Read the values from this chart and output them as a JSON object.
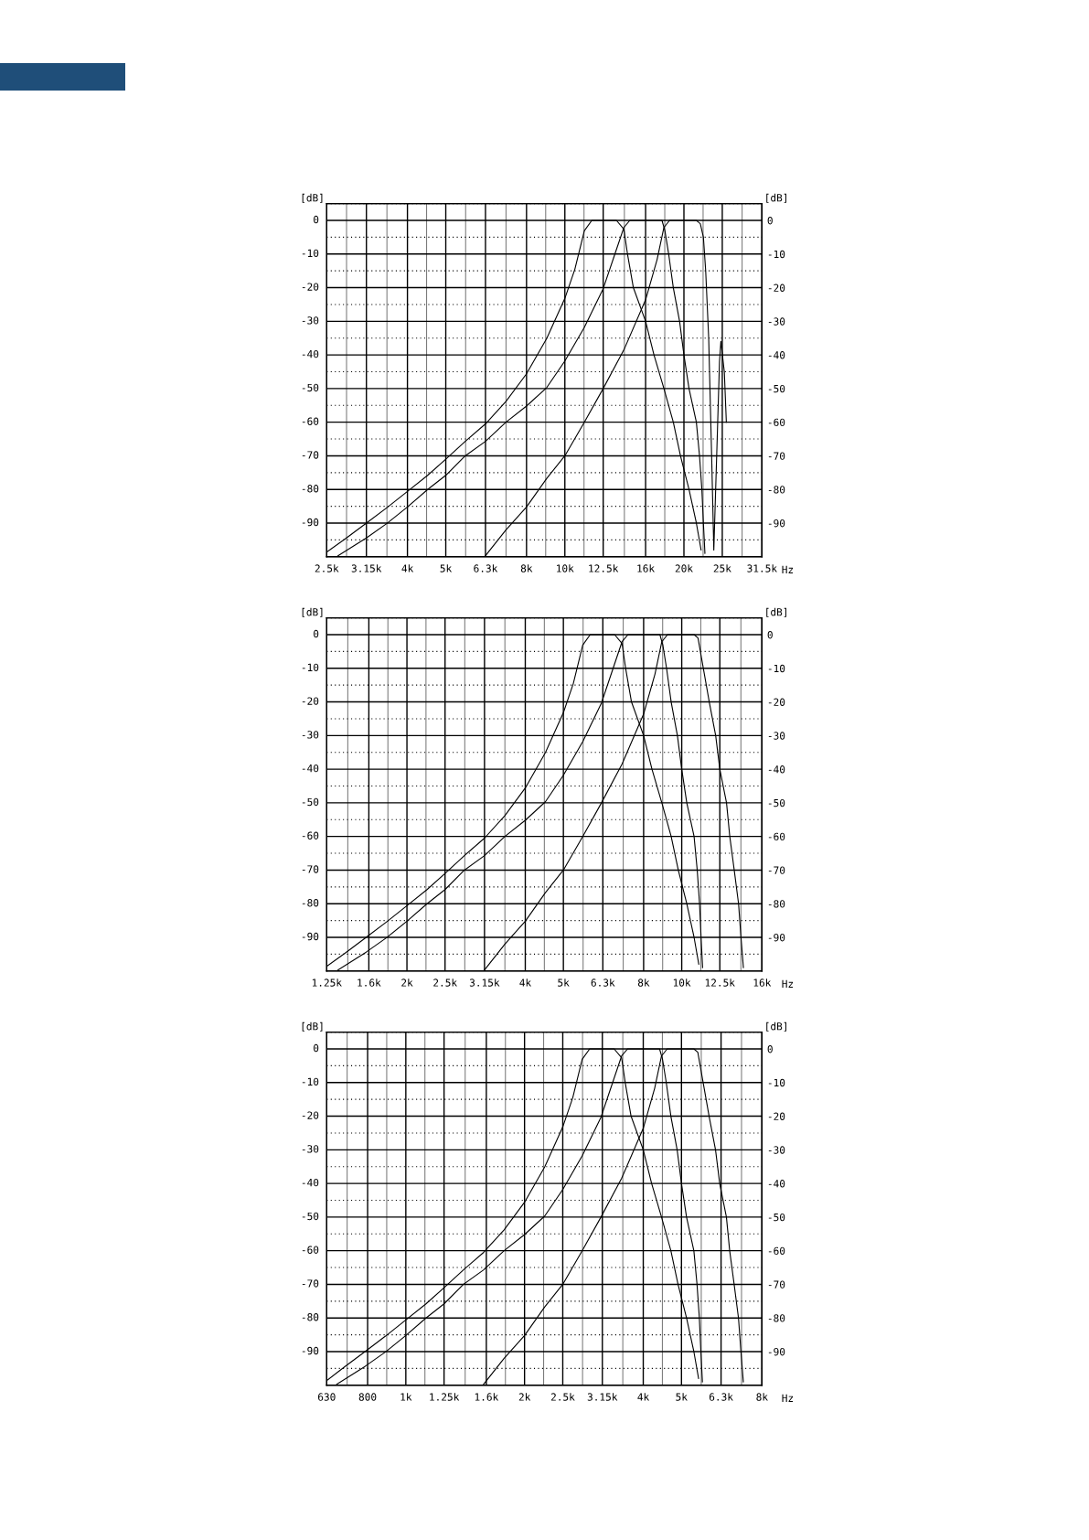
{
  "chart_data": [
    {
      "type": "line",
      "log": "x",
      "xlabel": "Hz",
      "ylabel": "[dB]",
      "y2label": "[dB]",
      "grid": true,
      "xlim": [
        2500,
        31500
      ],
      "ylim": [
        -100,
        5
      ],
      "y2lim": [
        -100,
        5
      ],
      "xticks": [
        {
          "value": 2500,
          "label": "2.5k"
        },
        {
          "value": 3150,
          "label": "3.15k"
        },
        {
          "value": 4000,
          "label": "4k"
        },
        {
          "value": 5000,
          "label": "5k"
        },
        {
          "value": 6300,
          "label": "6.3k"
        },
        {
          "value": 8000,
          "label": "8k"
        },
        {
          "value": 10000,
          "label": "10k"
        },
        {
          "value": 12500,
          "label": "12.5k"
        },
        {
          "value": 16000,
          "label": "16k"
        },
        {
          "value": 20000,
          "label": "20k"
        },
        {
          "value": 25000,
          "label": "25k"
        },
        {
          "value": 31500,
          "label": "31.5k"
        }
      ],
      "yticks": [
        -90,
        -80,
        -70,
        -60,
        -50,
        -40,
        -30,
        -20,
        -10,
        0
      ],
      "y2ticks": [
        -90,
        -80,
        -70,
        -60,
        -50,
        -40,
        -30,
        -20,
        -10,
        0
      ],
      "series": [
        {
          "color": "#000000",
          "x": [
            2500,
            2800,
            3150,
            3550,
            4000,
            4500,
            5000,
            5600,
            6300,
            7100,
            8000,
            9000,
            10000,
            10600,
            11200,
            11700,
            13500,
            14100,
            14400,
            14900,
            16000,
            16800,
            17800,
            18800,
            19600,
            20600,
            21500,
            22100
          ],
          "values": [
            -98.6,
            -94.5,
            -90,
            -85.4,
            -80.6,
            -75.8,
            -71,
            -65.7,
            -60.5,
            -53.8,
            -45.6,
            -35.1,
            -23.2,
            -14.5,
            -3.1,
            0,
            0,
            -2.6,
            -10,
            -20,
            -30,
            -40,
            -50,
            -60,
            -70,
            -80,
            -90,
            -98
          ]
        },
        {
          "color": "#000000",
          "x": [
            2670,
            3150,
            3550,
            4000,
            4500,
            5000,
            5600,
            6300,
            7100,
            8000,
            9000,
            10000,
            11200,
            12500,
            13400,
            14100,
            14600,
            17600,
            17900,
            18300,
            18800,
            19500,
            20000,
            20600,
            21500,
            21900,
            22200,
            22400,
            22600
          ],
          "values": [
            -99.7,
            -94.4,
            -90.1,
            -85.2,
            -80,
            -75.8,
            -70,
            -65.7,
            -60,
            -55.2,
            -49.7,
            -41.8,
            -31.8,
            -20.3,
            -9.8,
            -2.1,
            0,
            0,
            -3,
            -10,
            -20,
            -30,
            -40,
            -50,
            -60,
            -70,
            -80,
            -90,
            -99
          ]
        },
        {
          "color": "#000000",
          "x": [
            6300,
            7100,
            8000,
            9000,
            10000,
            11200,
            12500,
            14100,
            16000,
            17100,
            17800,
            18400,
            21500,
            22000,
            22400,
            22700,
            23100,
            23500,
            23800,
            24200,
            24600,
            24800,
            25300,
            25600
          ],
          "values": [
            -99.7,
            -92,
            -85.2,
            -76.7,
            -70,
            -60,
            -50,
            -38.5,
            -23.6,
            -11.7,
            -2.1,
            0,
            0,
            -1,
            -5,
            -15,
            -35,
            -70,
            -98,
            -70,
            -42,
            -36,
            -45,
            -60
          ]
        }
      ]
    },
    {
      "type": "line",
      "log": "x",
      "xlabel": "Hz",
      "ylabel": "[dB]",
      "y2label": "[dB]",
      "grid": true,
      "xlim": [
        1250,
        16000
      ],
      "ylim": [
        -100,
        5
      ],
      "y2lim": [
        -100,
        5
      ],
      "xticks": [
        {
          "value": 1250,
          "label": "1.25k"
        },
        {
          "value": 1600,
          "label": "1.6k"
        },
        {
          "value": 2000,
          "label": "2k"
        },
        {
          "value": 2500,
          "label": "2.5k"
        },
        {
          "value": 3150,
          "label": "3.15k"
        },
        {
          "value": 4000,
          "label": "4k"
        },
        {
          "value": 5000,
          "label": "5k"
        },
        {
          "value": 6300,
          "label": "6.3k"
        },
        {
          "value": 8000,
          "label": "8k"
        },
        {
          "value": 10000,
          "label": "10k"
        },
        {
          "value": 12500,
          "label": "12.5k"
        },
        {
          "value": 16000,
          "label": "16k"
        }
      ],
      "yticks": [
        -90,
        -80,
        -70,
        -60,
        -50,
        -40,
        -30,
        -20,
        -10,
        0
      ],
      "y2ticks": [
        -90,
        -80,
        -70,
        -60,
        -50,
        -40,
        -30,
        -20,
        -10,
        0
      ],
      "series": [
        {
          "color": "#000000",
          "x": [
            1250,
            1400,
            1575,
            1775,
            2000,
            2250,
            2500,
            2800,
            3150,
            3550,
            4000,
            4500,
            5000,
            5300,
            5600,
            5850,
            6750,
            7050,
            7200,
            7450,
            8000,
            8400,
            8900,
            9400,
            9800,
            10300,
            10750,
            11050
          ],
          "values": [
            -98.6,
            -94.5,
            -90,
            -85.4,
            -80.6,
            -75.8,
            -71,
            -65.7,
            -60.5,
            -53.8,
            -45.6,
            -35.1,
            -23.2,
            -14.5,
            -3.1,
            0,
            0,
            -2.6,
            -10,
            -20,
            -30,
            -40,
            -50,
            -60,
            -70,
            -80,
            -90,
            -98
          ]
        },
        {
          "color": "#000000",
          "x": [
            1335,
            1575,
            1775,
            2000,
            2250,
            2500,
            2800,
            3150,
            3550,
            4000,
            4500,
            5000,
            5600,
            6250,
            6700,
            7050,
            7300,
            8800,
            8950,
            9150,
            9400,
            9750,
            10000,
            10300,
            10750,
            10950,
            11100,
            11200,
            11300
          ],
          "values": [
            -99.7,
            -94.4,
            -90.1,
            -85.2,
            -80,
            -75.8,
            -70,
            -65.7,
            -60,
            -55.2,
            -49.7,
            -41.8,
            -31.8,
            -20.3,
            -9.8,
            -2.1,
            0,
            0,
            -3,
            -10,
            -20,
            -30,
            -40,
            -50,
            -60,
            -70,
            -80,
            -90,
            -99
          ]
        },
        {
          "color": "#000000",
          "x": [
            3150,
            3550,
            4000,
            4500,
            5000,
            5600,
            6250,
            7050,
            8000,
            8550,
            8900,
            9200,
            10750,
            11000,
            11350,
            11750,
            12200,
            12500,
            13000,
            13250,
            13600,
            13950,
            14150,
            14350
          ],
          "values": [
            -99.7,
            -92,
            -85.2,
            -76.7,
            -70,
            -60,
            -50,
            -38.5,
            -23.6,
            -11.7,
            -2.1,
            0,
            0,
            -1,
            -10,
            -20,
            -30,
            -40,
            -50,
            -60,
            -70,
            -80,
            -90,
            -99
          ]
        }
      ]
    },
    {
      "type": "line",
      "log": "x",
      "xlabel": "Hz",
      "ylabel": "[dB]",
      "y2label": "[dB]",
      "grid": true,
      "xlim": [
        630,
        8000
      ],
      "ylim": [
        -100,
        5
      ],
      "y2lim": [
        -100,
        5
      ],
      "xticks": [
        630,
        800,
        {
          "value": 1000,
          "label": "1k"
        },
        {
          "value": 1250,
          "label": "1.25k"
        },
        {
          "value": 1600,
          "label": "1.6k"
        },
        {
          "value": 2000,
          "label": "2k"
        },
        {
          "value": 2500,
          "label": "2.5k"
        },
        {
          "value": 3150,
          "label": "3.15k"
        },
        {
          "value": 4000,
          "label": "4k"
        },
        {
          "value": 5000,
          "label": "5k"
        },
        {
          "value": 6300,
          "label": "6.3k"
        },
        {
          "value": 8000,
          "label": "8k"
        }
      ],
      "yticks": [
        -90,
        -80,
        -70,
        -60,
        -50,
        -40,
        -30,
        -20,
        -10,
        0
      ],
      "y2ticks": [
        -90,
        -80,
        -70,
        -60,
        -50,
        -40,
        -30,
        -20,
        -10,
        0
      ],
      "series": [
        {
          "color": "#000000",
          "x": [
            630,
            700,
            788,
            888,
            1000,
            1125,
            1250,
            1400,
            1575,
            1775,
            2000,
            2250,
            2500,
            2650,
            2800,
            2925,
            3375,
            3525,
            3600,
            3725,
            4000,
            4200,
            4450,
            4700,
            4900,
            5150,
            5375,
            5525
          ],
          "values": [
            -98.6,
            -94.5,
            -90,
            -85.4,
            -80.6,
            -75.8,
            -71,
            -65.7,
            -60.5,
            -53.8,
            -45.6,
            -35.1,
            -23.2,
            -14.5,
            -3.1,
            0,
            0,
            -2.6,
            -10,
            -20,
            -30,
            -40,
            -50,
            -60,
            -70,
            -80,
            -90,
            -98
          ]
        },
        {
          "color": "#000000",
          "x": [
            668,
            788,
            888,
            1000,
            1125,
            1250,
            1400,
            1575,
            1775,
            2000,
            2250,
            2500,
            2800,
            3125,
            3350,
            3525,
            3650,
            4400,
            4475,
            4575,
            4700,
            4875,
            5000,
            5150,
            5375,
            5475,
            5550,
            5600,
            5650
          ],
          "values": [
            -99.7,
            -94.4,
            -90.1,
            -85.2,
            -80,
            -75.8,
            -70,
            -65.7,
            -60,
            -55.2,
            -49.7,
            -41.8,
            -31.8,
            -20.3,
            -9.8,
            -2.1,
            0,
            0,
            -3,
            -10,
            -20,
            -30,
            -40,
            -50,
            -60,
            -70,
            -80,
            -90,
            -99
          ]
        },
        {
          "color": "#000000",
          "x": [
            1575,
            1775,
            2000,
            2250,
            2500,
            2800,
            3125,
            3525,
            4000,
            4275,
            4450,
            4600,
            5375,
            5500,
            5675,
            5875,
            6100,
            6250,
            6500,
            6625,
            6800,
            6975,
            7075,
            7175
          ],
          "values": [
            -99.7,
            -92,
            -85.2,
            -76.7,
            -70,
            -60,
            -50,
            -38.5,
            -23.6,
            -11.7,
            -2.1,
            0,
            0,
            -1,
            -10,
            -20,
            -30,
            -40,
            -50,
            -60,
            -70,
            -80,
            -90,
            -99
          ]
        }
      ]
    }
  ]
}
